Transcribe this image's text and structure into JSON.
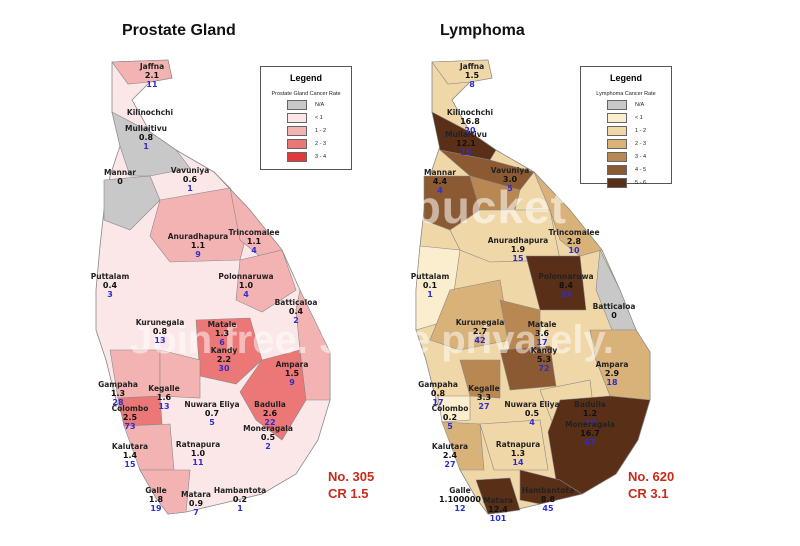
{
  "left_map": {
    "title": "Prostate Gland",
    "legend": {
      "title": "Legend",
      "subtitle": "Prostate Gland Cancer Rate",
      "items": [
        {
          "label": "N/A",
          "color": "#c8c8c8"
        },
        {
          "label": "< 1",
          "color": "#fbe7e7"
        },
        {
          "label": "1 - 2",
          "color": "#f4b3b3"
        },
        {
          "label": "2 - 3",
          "color": "#ec7777"
        },
        {
          "label": "3 - 4",
          "color": "#e03a3a"
        }
      ]
    },
    "summary": {
      "number": "No. 305",
      "rate": "CR 1.5"
    },
    "districts": [
      {
        "name": "Jaffna",
        "rate": "2.1",
        "count": "11"
      },
      {
        "name": "Kilinochchi",
        "rate": "",
        "count": ""
      },
      {
        "name": "Mullaitivu",
        "rate": "0.8",
        "count": "1"
      },
      {
        "name": "Mannar",
        "rate": "0",
        "count": ""
      },
      {
        "name": "Vavuniya",
        "rate": "0.6",
        "count": "1"
      },
      {
        "name": "Anuradhapura",
        "rate": "1.1",
        "count": "9"
      },
      {
        "name": "Trincomalee",
        "rate": "1.1",
        "count": "4"
      },
      {
        "name": "Puttalam",
        "rate": "0.4",
        "count": "3"
      },
      {
        "name": "Polonnaruwa",
        "rate": "1.0",
        "count": "4"
      },
      {
        "name": "Batticaloa",
        "rate": "0.4",
        "count": "2"
      },
      {
        "name": "Kurunegala",
        "rate": "0.8",
        "count": "13"
      },
      {
        "name": "Matale",
        "rate": "1.3",
        "count": "6"
      },
      {
        "name": "Kandy",
        "rate": "2.2",
        "count": "30"
      },
      {
        "name": "Ampara",
        "rate": "1.5",
        "count": "9"
      },
      {
        "name": "Gampaha",
        "rate": "1.3",
        "count": "28"
      },
      {
        "name": "Kegalle",
        "rate": "1.6",
        "count": "13"
      },
      {
        "name": "Nuwara Eliya",
        "rate": "0.7",
        "count": "5"
      },
      {
        "name": "Badulla",
        "rate": "2.6",
        "count": "22"
      },
      {
        "name": "Colombo",
        "rate": "2.5",
        "count": "73"
      },
      {
        "name": "Moneragala",
        "rate": "0.5",
        "count": "2"
      },
      {
        "name": "Kalutara",
        "rate": "1.4",
        "count": "15"
      },
      {
        "name": "Ratnapura",
        "rate": "1.0",
        "count": "11"
      },
      {
        "name": "Galle",
        "rate": "1.8",
        "count": "19"
      },
      {
        "name": "Matara",
        "rate": "0.9",
        "count": "7"
      },
      {
        "name": "Hambantota",
        "rate": "0.2",
        "count": "1"
      }
    ]
  },
  "right_map": {
    "title": "Lymphoma",
    "legend": {
      "title": "Legend",
      "subtitle": "Lymphoma Cancer Rate",
      "items": [
        {
          "label": "N/A",
          "color": "#c8c8c8"
        },
        {
          "label": "< 1",
          "color": "#fbeecf"
        },
        {
          "label": "1 - 2",
          "color": "#f0d7a8"
        },
        {
          "label": "2 - 3",
          "color": "#d9b27a"
        },
        {
          "label": "3 - 4",
          "color": "#b98852"
        },
        {
          "label": "4 - 5",
          "color": "#8c5a32"
        },
        {
          "label": "5 - 6",
          "color": "#5a2f18"
        }
      ]
    },
    "summary": {
      "number": "No. 620",
      "rate": "CR 3.1"
    },
    "districts": [
      {
        "name": "Jaffna",
        "rate": "1.5",
        "count": "8"
      },
      {
        "name": "Kilinochchi",
        "rate": "16.8",
        "count": "20"
      },
      {
        "name": "Mullaitivu",
        "rate": "12.1",
        "count": "15"
      },
      {
        "name": "Mannar",
        "rate": "4.4",
        "count": "4"
      },
      {
        "name": "Vavuniya",
        "rate": "3.0",
        "count": "5"
      },
      {
        "name": "Anuradhapura",
        "rate": "1.9",
        "count": "15"
      },
      {
        "name": "Trincomalee",
        "rate": "2.8",
        "count": "10"
      },
      {
        "name": "Puttalam",
        "rate": "0.1",
        "count": "1"
      },
      {
        "name": "Polonnaruwa",
        "rate": "8.4",
        "count": "33"
      },
      {
        "name": "Batticaloa",
        "rate": "0",
        "count": ""
      },
      {
        "name": "Kurunegala",
        "rate": "2.7",
        "count": "42"
      },
      {
        "name": "Matale",
        "rate": "3.6",
        "count": "17"
      },
      {
        "name": "Kandy",
        "rate": "5.3",
        "count": "72"
      },
      {
        "name": "Ampara",
        "rate": "2.9",
        "count": "18"
      },
      {
        "name": "Gampaha",
        "rate": "0.8",
        "count": "17"
      },
      {
        "name": "Kegalle",
        "rate": "3.3",
        "count": "27"
      },
      {
        "name": "Nuwara Eliya",
        "rate": "0.5",
        "count": "4"
      },
      {
        "name": "Badulla",
        "rate": "1.2",
        "count": "10"
      },
      {
        "name": "Colombo",
        "rate": "0.2",
        "count": "5"
      },
      {
        "name": "Moneragala",
        "rate": "16.7",
        "count": "67"
      },
      {
        "name": "Kalutara",
        "rate": "2.4",
        "count": "27"
      },
      {
        "name": "Ratnapura",
        "rate": "1.3",
        "count": "14"
      },
      {
        "name": "Galle",
        "rate": "1.100000",
        "count": "12"
      },
      {
        "name": "Matara",
        "rate": "12.4",
        "count": "101"
      },
      {
        "name": "Hambantota",
        "rate": "8.8",
        "count": "45"
      }
    ]
  }
}
